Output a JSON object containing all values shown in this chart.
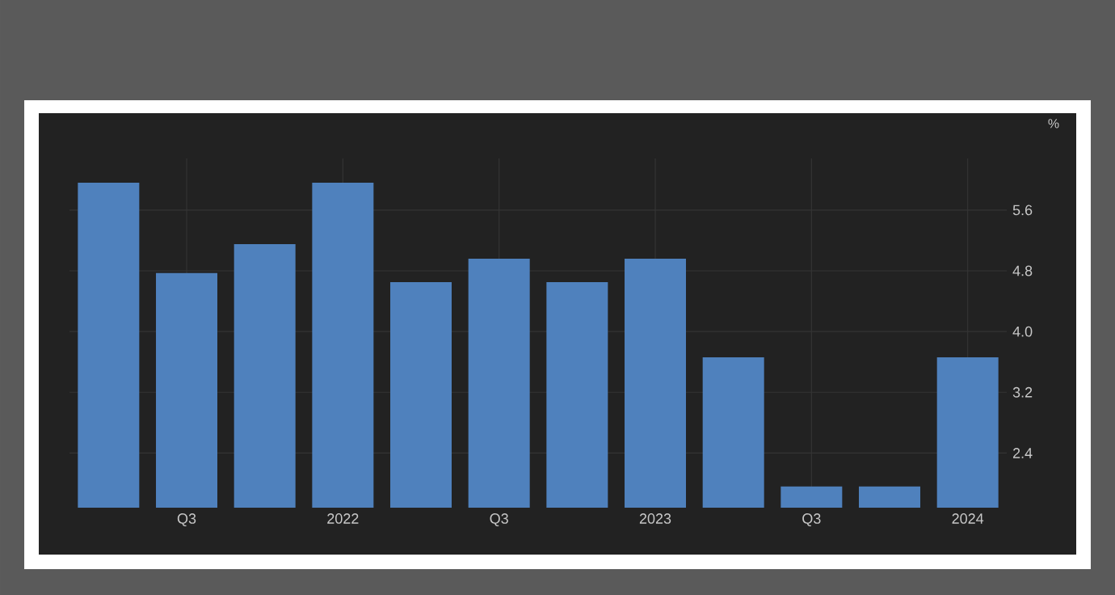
{
  "chart_data": {
    "type": "bar",
    "ylabel": "%",
    "categories": [
      null,
      "Q3",
      null,
      "2022",
      null,
      "Q3",
      null,
      "2023",
      null,
      "Q3",
      null,
      "2024"
    ],
    "values": [
      5.96,
      4.77,
      5.15,
      5.96,
      4.65,
      4.96,
      4.65,
      4.96,
      3.66,
      1.96,
      1.96,
      3.66
    ],
    "color": "#4f81bd",
    "ylim": [
      1.68,
      6.28
    ],
    "yticks": [
      2.4,
      3.2,
      {
        "value": 4.0,
        "label": "4.0"
      },
      4.8,
      5.6
    ],
    "grid": true
  }
}
